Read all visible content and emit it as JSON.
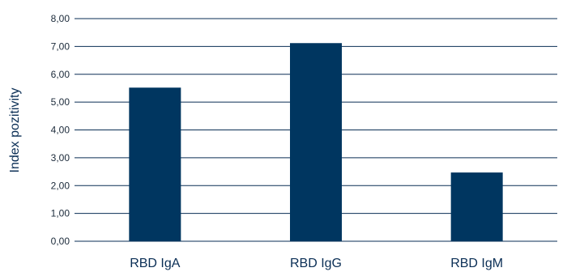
{
  "chart_data": {
    "type": "bar",
    "categories": [
      "RBD IgA",
      "RBD IgG",
      "RBD IgM"
    ],
    "values": [
      5.52,
      7.12,
      2.47
    ],
    "ylabel": "Index pozitivity",
    "ylim": [
      0,
      8
    ],
    "yticks": [
      "0,00",
      "1,00",
      "2,00",
      "3,00",
      "4,00",
      "5,00",
      "6,00",
      "7,00",
      "8,00"
    ],
    "grid": true,
    "legend": "none",
    "bar_color": "#003660",
    "grid_color": "#0a2e55",
    "text_color": "#0a2e55"
  }
}
